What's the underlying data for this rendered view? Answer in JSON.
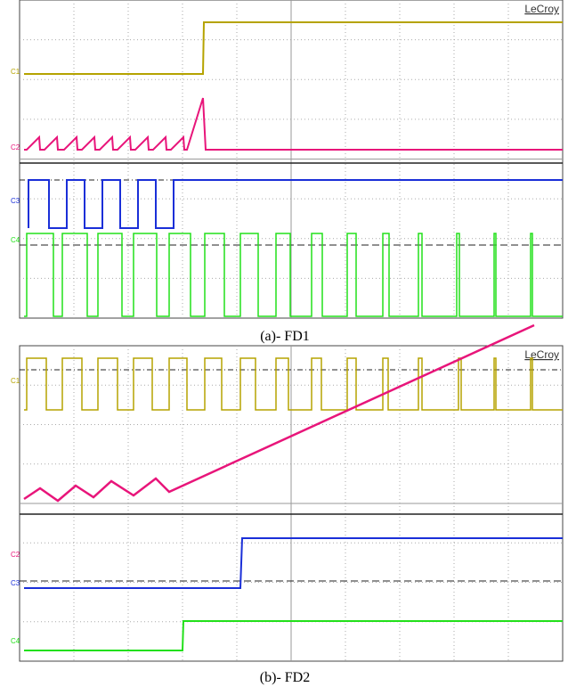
{
  "panels": [
    {
      "brand": "LeCroy",
      "channels": [
        "C1",
        "C2",
        "C3",
        "C4"
      ],
      "caption": "(a)- FD1"
    },
    {
      "brand": "LeCroy",
      "channels": [
        "C1",
        "C2",
        "C3",
        "C4"
      ],
      "caption": "(b)- FD2"
    }
  ]
}
